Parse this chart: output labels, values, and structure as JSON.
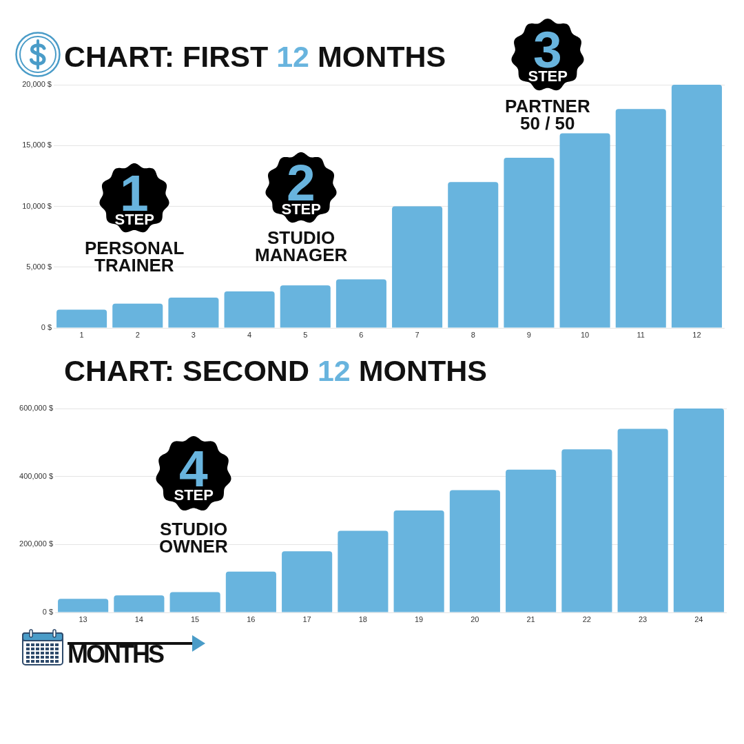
{
  "chart_data": [
    {
      "type": "bar",
      "title": "CHART: FIRST 12 MONTHS",
      "categories": [
        "1",
        "2",
        "3",
        "4",
        "5",
        "6",
        "7",
        "8",
        "9",
        "10",
        "11",
        "12"
      ],
      "values": [
        1500,
        2000,
        2500,
        3000,
        3500,
        4000,
        10000,
        12000,
        14000,
        16000,
        18000,
        20000
      ],
      "color": "#68b4de",
      "ylim": [
        0,
        20000
      ],
      "yticks": [
        {
          "value": 0,
          "label": "0 $"
        },
        {
          "value": 5000,
          "label": "5,000 $"
        },
        {
          "value": 10000,
          "label": "10,000 $"
        },
        {
          "value": 15000,
          "label": "15,000 $"
        },
        {
          "value": 20000,
          "label": "20,000 $"
        }
      ],
      "grid": "y",
      "annotations": [
        "1\nSTEP\nPERSONAL\nTRAINER",
        "2\nSTEP\nSTUDIO\nMANAGER",
        "3\nSTEP\nPARTNER\n50 / 50"
      ]
    },
    {
      "type": "bar",
      "title": "CHART: SECOND 12 MONTHS",
      "xlabel": "MONTHS",
      "categories": [
        "13",
        "14",
        "15",
        "16",
        "17",
        "18",
        "19",
        "20",
        "21",
        "22",
        "23",
        "24"
      ],
      "values": [
        40000,
        50000,
        60000,
        120000,
        180000,
        240000,
        300000,
        360000,
        420000,
        480000,
        540000,
        600000
      ],
      "color": "#68b4de",
      "ylim": [
        0,
        600000
      ],
      "yticks": [
        {
          "value": 0,
          "label": "0 $"
        },
        {
          "value": 200000,
          "label": "200,000 $"
        },
        {
          "value": 400000,
          "label": "400,000 $"
        },
        {
          "value": 600000,
          "label": "600,000 $"
        }
      ],
      "grid": "y",
      "annotations": [
        "4\nSTEP\nSTUDIO\nOWNER"
      ]
    }
  ]
}
